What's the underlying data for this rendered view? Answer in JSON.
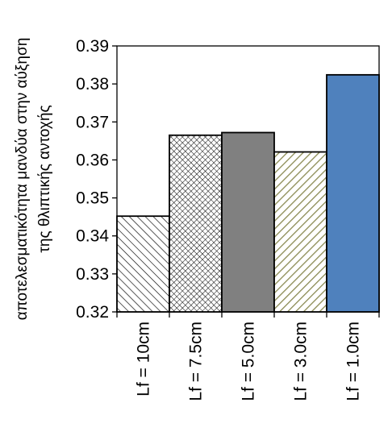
{
  "chart_data": {
    "type": "bar",
    "title": "",
    "xlabel": "",
    "ylabel_lines": [
      "αποτελεσματικότητα  μανδύα στην αύξηση",
      "της θλιπτικής αντοχής"
    ],
    "categories": [
      "Lf = 10cm",
      "Lf = 7.5cm",
      "Lf = 5.0cm",
      "Lf = 3.0cm",
      "Lf = 1.0cm"
    ],
    "values": [
      0.3452,
      0.3665,
      0.3672,
      0.3621,
      0.3824
    ],
    "ylim": [
      0.32,
      0.39
    ],
    "yticks": [
      0.32,
      0.33,
      0.34,
      0.35,
      0.36,
      0.37,
      0.38,
      0.39
    ],
    "ytick_labels": [
      "0.32",
      "0.33",
      "0.34",
      "0.35",
      "0.36",
      "0.37",
      "0.38",
      "0.39"
    ],
    "grid": false,
    "bar_styles": [
      "hatch-diag-black",
      "cross-hatch",
      "solid-gray",
      "hatch-diag-olive",
      "solid-blue"
    ],
    "colors": {
      "gray": "#808080",
      "olive": "#8a8a52",
      "blue": "#4f81bd",
      "outline": "#000000"
    }
  }
}
